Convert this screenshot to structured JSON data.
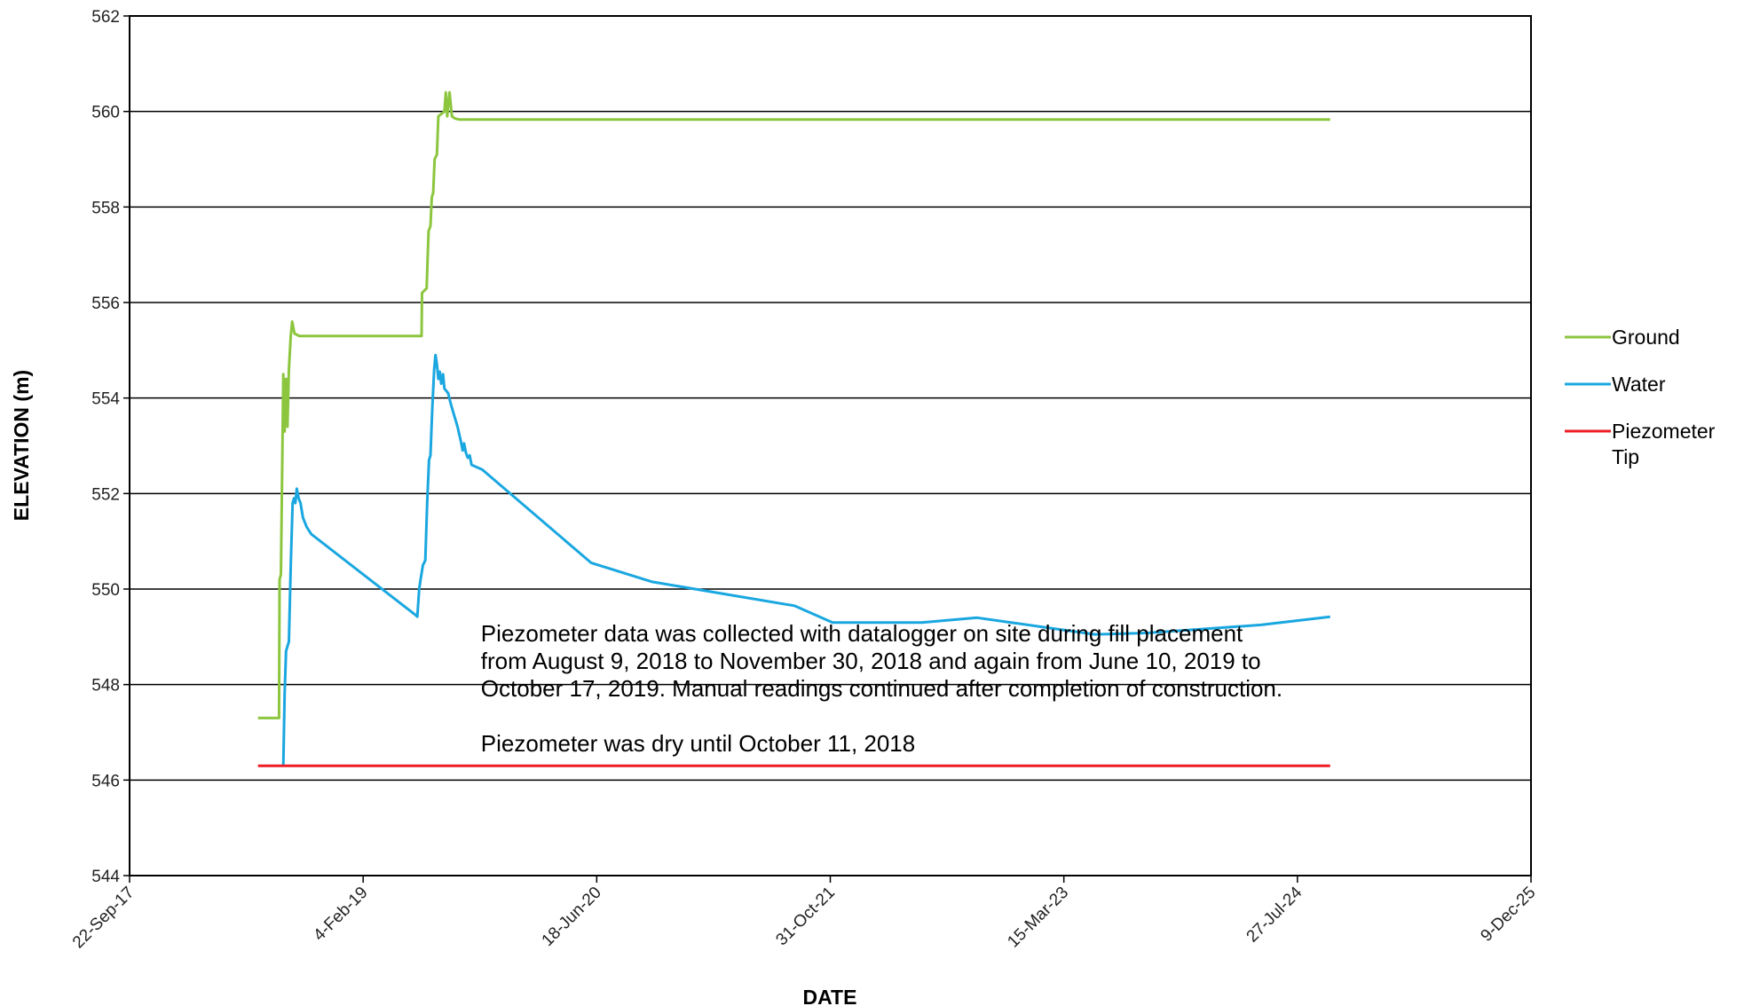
{
  "chart_data": {
    "type": "line",
    "xlabel": "DATE",
    "ylabel": "ELEVATION (m)",
    "ylim": [
      544,
      562
    ],
    "yticks": [
      "544",
      "546",
      "548",
      "550",
      "552",
      "554",
      "556",
      "558",
      "560",
      "562"
    ],
    "xlim": [
      "2017-09-22",
      "2025-12-09"
    ],
    "xticks": [
      {
        "date": "2017-09-22",
        "label": "22-Sep-17"
      },
      {
        "date": "2019-02-04",
        "label": "4-Feb-19"
      },
      {
        "date": "2020-06-18",
        "label": "18-Jun-20"
      },
      {
        "date": "2021-10-31",
        "label": "31-Oct-21"
      },
      {
        "date": "2023-03-15",
        "label": "15-Mar-23"
      },
      {
        "date": "2024-07-27",
        "label": "27-Jul-24"
      },
      {
        "date": "2025-12-09",
        "label": "9-Dec-25"
      }
    ],
    "grid": true,
    "legend_position": "right",
    "series": [
      {
        "name": "Ground",
        "color": "#8cc63f",
        "points": [
          [
            "2018-06-24",
            547.3
          ],
          [
            "2018-08-08",
            547.3
          ],
          [
            "2018-08-09",
            550.2
          ],
          [
            "2018-08-12",
            550.3
          ],
          [
            "2018-08-14",
            552.0
          ],
          [
            "2018-08-17",
            554.5
          ],
          [
            "2018-08-20",
            553.3
          ],
          [
            "2018-08-23",
            554.4
          ],
          [
            "2018-08-26",
            553.4
          ],
          [
            "2018-08-29",
            554.6
          ],
          [
            "2018-09-02",
            555.3
          ],
          [
            "2018-09-05",
            555.6
          ],
          [
            "2018-09-10",
            555.35
          ],
          [
            "2018-09-20",
            555.3
          ],
          [
            "2019-06-09",
            555.3
          ],
          [
            "2019-06-10",
            556.2
          ],
          [
            "2019-06-20",
            556.3
          ],
          [
            "2019-06-24",
            557.5
          ],
          [
            "2019-06-28",
            557.6
          ],
          [
            "2019-07-01",
            558.2
          ],
          [
            "2019-07-04",
            558.3
          ],
          [
            "2019-07-07",
            559.0
          ],
          [
            "2019-07-12",
            559.1
          ],
          [
            "2019-07-15",
            559.9
          ],
          [
            "2019-07-28",
            560.0
          ],
          [
            "2019-07-31",
            560.4
          ],
          [
            "2019-08-03",
            559.9
          ],
          [
            "2019-08-08",
            560.4
          ],
          [
            "2019-08-13",
            559.9
          ],
          [
            "2019-08-20",
            559.85
          ],
          [
            "2019-08-30",
            559.83
          ],
          [
            "2024-10-05",
            559.83
          ]
        ]
      },
      {
        "name": "Water",
        "color": "#1aa7e0",
        "points": [
          [
            "2018-08-17",
            546.3
          ],
          [
            "2018-08-20",
            547.8
          ],
          [
            "2018-08-23",
            548.7
          ],
          [
            "2018-08-26",
            548.8
          ],
          [
            "2018-08-29",
            548.9
          ],
          [
            "2018-09-02",
            550.5
          ],
          [
            "2018-09-06",
            551.8
          ],
          [
            "2018-09-09",
            551.9
          ],
          [
            "2018-09-12",
            551.8
          ],
          [
            "2018-09-15",
            552.1
          ],
          [
            "2018-09-19",
            551.9
          ],
          [
            "2018-09-23",
            551.8
          ],
          [
            "2018-09-28",
            551.5
          ],
          [
            "2018-10-06",
            551.3
          ],
          [
            "2018-10-16",
            551.15
          ],
          [
            "2019-05-28",
            549.45
          ],
          [
            "2019-05-31",
            549.42
          ],
          [
            "2019-06-04",
            550.0
          ],
          [
            "2019-06-07",
            550.2
          ],
          [
            "2019-06-12",
            550.5
          ],
          [
            "2019-06-17",
            550.6
          ],
          [
            "2019-06-21",
            551.8
          ],
          [
            "2019-06-25",
            552.7
          ],
          [
            "2019-06-28",
            552.8
          ],
          [
            "2019-07-02",
            553.8
          ],
          [
            "2019-07-06",
            554.6
          ],
          [
            "2019-07-09",
            554.9
          ],
          [
            "2019-07-12",
            554.7
          ],
          [
            "2019-07-15",
            554.4
          ],
          [
            "2019-07-18",
            554.55
          ],
          [
            "2019-07-21",
            554.3
          ],
          [
            "2019-07-25",
            554.5
          ],
          [
            "2019-07-28",
            554.2
          ],
          [
            "2019-08-05",
            554.1
          ],
          [
            "2019-08-10",
            553.9
          ],
          [
            "2019-08-16",
            553.7
          ],
          [
            "2019-08-25",
            553.4
          ],
          [
            "2019-09-01",
            553.1
          ],
          [
            "2019-09-05",
            552.9
          ],
          [
            "2019-09-08",
            553.05
          ],
          [
            "2019-09-12",
            552.85
          ],
          [
            "2019-09-16",
            552.75
          ],
          [
            "2019-09-20",
            552.8
          ],
          [
            "2019-09-24",
            552.6
          ],
          [
            "2019-10-17",
            552.5
          ],
          [
            "2020-06-06",
            550.55
          ],
          [
            "2020-10-15",
            550.15
          ],
          [
            "2021-08-15",
            549.65
          ],
          [
            "2021-11-05",
            549.3
          ],
          [
            "2022-05-15",
            549.3
          ],
          [
            "2022-09-10",
            549.4
          ],
          [
            "2023-05-20",
            549.05
          ],
          [
            "2023-09-10",
            549.08
          ],
          [
            "2024-05-10",
            549.25
          ],
          [
            "2024-10-05",
            549.42
          ]
        ]
      },
      {
        "name": "Piezometer Tip",
        "color": "#ee1c24",
        "points": [
          [
            "2018-06-24",
            546.3
          ],
          [
            "2024-10-05",
            546.3
          ]
        ]
      }
    ],
    "legend_labels": [
      {
        "lines": [
          "Ground"
        ]
      },
      {
        "lines": [
          "Water"
        ]
      },
      {
        "lines": [
          "Piezometer",
          "Tip"
        ]
      }
    ],
    "annotations": [
      {
        "date": "2019-10-14",
        "value": 548.9,
        "lines": [
          "Piezometer data was collected with datalogger on site during fill placement",
          "from August 9, 2018 to November 30, 2018 and again from June 10, 2019 to",
          "October 17, 2019. Manual readings continued after completion of construction."
        ]
      },
      {
        "date": "2019-10-14",
        "value": 546.6,
        "lines": [
          "Piezometer was dry until October 11, 2018"
        ]
      }
    ]
  }
}
